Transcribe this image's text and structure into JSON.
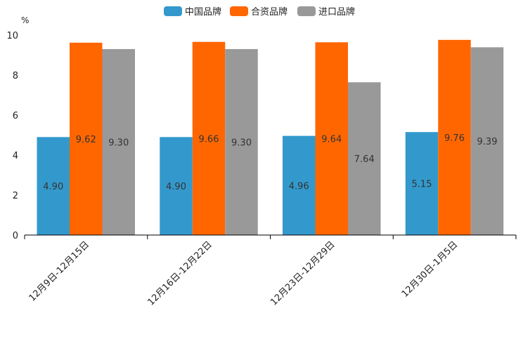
{
  "chart_data": {
    "type": "bar",
    "title": "",
    "ylabel": "%",
    "xlabel": "",
    "ylim": [
      0,
      10
    ],
    "yticks": [
      "0",
      "2",
      "4",
      "6",
      "8",
      "10"
    ],
    "categories": [
      "12月9日-12月15日",
      "12月16日-12月22日",
      "12月23日-12月29日",
      "12月30日-1月5日"
    ],
    "series": [
      {
        "name": "中国品牌",
        "color": "#3399cc",
        "values": [
          4.9,
          4.9,
          4.96,
          5.15
        ],
        "labels": [
          "4.90",
          "4.90",
          "4.96",
          "5.15"
        ]
      },
      {
        "name": "合资品牌",
        "color": "#ff6600",
        "values": [
          9.62,
          9.66,
          9.64,
          9.76
        ],
        "labels": [
          "9.62",
          "9.66",
          "9.64",
          "9.76"
        ]
      },
      {
        "name": "进口品牌",
        "color": "#999999",
        "values": [
          9.3,
          9.3,
          7.64,
          9.39
        ],
        "labels": [
          "9.30",
          "9.30",
          "7.64",
          "9.39"
        ]
      }
    ],
    "legend_position": "top-center",
    "grid": false
  }
}
